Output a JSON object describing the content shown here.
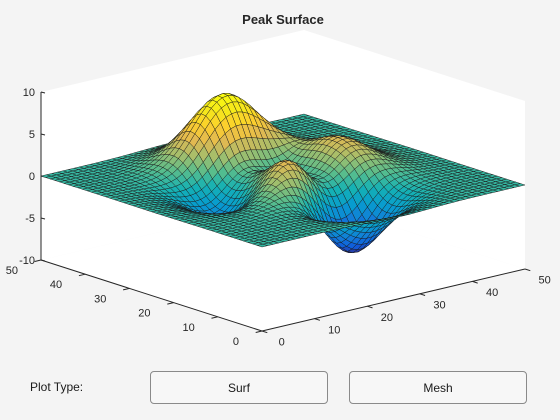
{
  "window": {
    "plot_title": "Peak Surface"
  },
  "controls": {
    "plot_type_label": "Plot Type:",
    "surf_label": "Surf",
    "mesh_label": "Mesh"
  },
  "colors": {
    "background": "#f4f4f4",
    "axes_pane": "#ffffff",
    "axis_line": "#262626",
    "surface_edge": "#1a1a1a",
    "colormap": "parula"
  },
  "chart_data": {
    "type": "surface",
    "function": "peaks",
    "title": "Peak Surface",
    "grid": false,
    "x": {
      "ticks": [
        "0",
        "10",
        "20",
        "30",
        "40",
        "50"
      ],
      "lim": [
        0,
        50
      ]
    },
    "y": {
      "ticks": [
        "0",
        "10",
        "20",
        "30",
        "40",
        "50"
      ],
      "lim": [
        0,
        50
      ]
    },
    "z": {
      "ticks": [
        "-10",
        "-5",
        "0",
        "5",
        "10"
      ],
      "lim": [
        -10,
        10
      ]
    },
    "mesh_points": 49
  }
}
